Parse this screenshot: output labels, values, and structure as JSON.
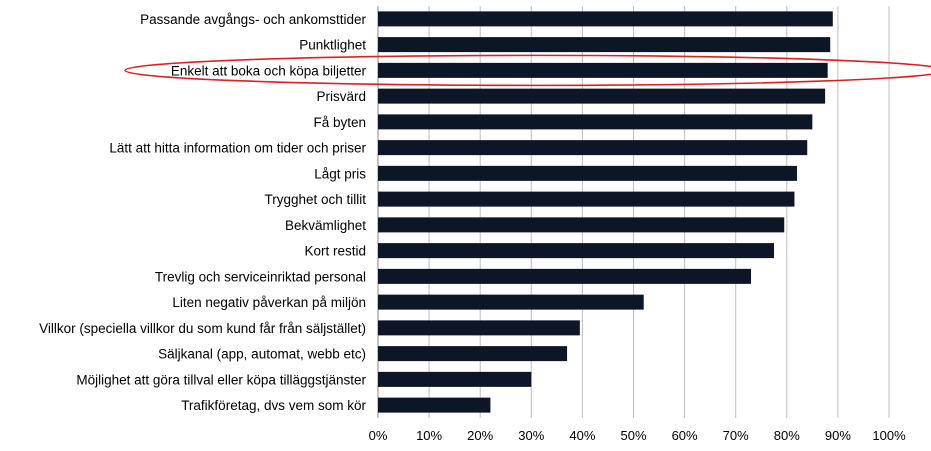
{
  "chart_data": {
    "type": "bar",
    "orientation": "horizontal",
    "categories": [
      "Passande avgångs- och ankomsttider",
      "Punktlighet",
      "Enkelt att boka och köpa biljetter",
      "Prisvärd",
      "Få byten",
      "Lätt att hitta information om tider och priser",
      "Lågt pris",
      "Trygghet och tillit",
      "Bekvämlighet",
      "Kort restid",
      "Trevlig och serviceinriktad personal",
      "Liten negativ påverkan på miljön",
      "Villkor (speciella villkor du som kund får från säljstället)",
      "Säljkanal (app, automat, webb etc)",
      "Möjlighet att göra tillval eller köpa tilläggstjänster",
      "Trafikföretag, dvs vem som kör"
    ],
    "values": [
      89,
      88.5,
      88,
      87.5,
      85,
      84,
      82,
      81.5,
      79.5,
      77.5,
      73,
      52,
      39.5,
      37,
      30,
      22
    ],
    "xlim": [
      0,
      100
    ],
    "xticks": [
      "0%",
      "10%",
      "20%",
      "30%",
      "40%",
      "50%",
      "60%",
      "70%",
      "80%",
      "90%",
      "100%"
    ],
    "title": "",
    "xlabel": "",
    "ylabel": "",
    "grid": "vertical",
    "highlighted_category_index": 2,
    "colors": {
      "bar": "#0d1626",
      "grid": "#bfbfbf",
      "axis": "#888888",
      "highlight": "#e02020"
    }
  }
}
